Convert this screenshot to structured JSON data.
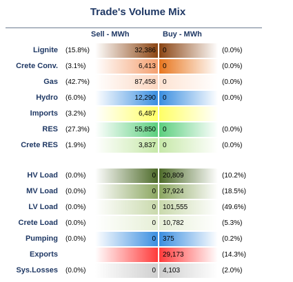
{
  "chart_data": {
    "type": "table",
    "title": "Trade's Volume Mix",
    "columns": [
      "Sell - MWh",
      "Buy - MWh"
    ],
    "rows": [
      {
        "label": "Lignite",
        "sell_pct": "(15.8%)",
        "sell": "32,386",
        "buy": "0",
        "buy_pct": "(0.0%)",
        "sell_color": "#8b4513",
        "buy_color": "#8b4513"
      },
      {
        "label": "Crete Conv.",
        "sell_pct": "(3.1%)",
        "sell": "6,413",
        "buy": "0",
        "buy_pct": "(0.0%)",
        "sell_color": "#f4a070",
        "buy_color": "#e8761e"
      },
      {
        "label": "Gas",
        "sell_pct": "(42.7%)",
        "sell": "87,458",
        "buy": "0",
        "buy_pct": "(0.0%)",
        "sell_color": "#fbd6c0",
        "buy_color": "#fde3d2"
      },
      {
        "label": "Hydro",
        "sell_pct": "(6.0%)",
        "sell": "12,290",
        "buy": "0",
        "buy_pct": "(0.0%)",
        "sell_color": "#3a8ee0",
        "buy_color": "#3a8ee0"
      },
      {
        "label": "Imports",
        "sell_pct": "(3.2%)",
        "sell": "6,487",
        "buy": "",
        "buy_pct": "",
        "sell_color": "#ffff66",
        "buy_color": "#ffff66"
      },
      {
        "label": "RES",
        "sell_pct": "(27.3%)",
        "sell": "55,850",
        "buy": "0",
        "buy_pct": "(0.0%)",
        "sell_color": "#5ccf7e",
        "buy_color": "#5ccf7e"
      },
      {
        "label": "Crete RES",
        "sell_pct": "(1.9%)",
        "sell": "3,837",
        "buy": "0",
        "buy_pct": "(0.0%)",
        "sell_color": "#c6e8a8",
        "buy_color": "#c6e8a8"
      },
      {
        "label": "HV Load",
        "sell_pct": "(0.0%)",
        "sell": "0",
        "buy": "20,809",
        "buy_pct": "(10.2%)",
        "sell_color": "#4e6b2a",
        "buy_color": "#4e6b2a"
      },
      {
        "label": "MV Load",
        "sell_pct": "(0.0%)",
        "sell": "0",
        "buy": "37,924",
        "buy_pct": "(18.5%)",
        "sell_color": "#8ba660",
        "buy_color": "#8ba660"
      },
      {
        "label": "LV Load",
        "sell_pct": "(0.0%)",
        "sell": "0",
        "buy": "101,555",
        "buy_pct": "(49.6%)",
        "sell_color": "#c9d9ac",
        "buy_color": "#c9d9ac"
      },
      {
        "label": "Crete Load",
        "sell_pct": "(0.0%)",
        "sell": "0",
        "buy": "10,782",
        "buy_pct": "(5.3%)",
        "sell_color": "#e6efd6",
        "buy_color": "#e6efd6"
      },
      {
        "label": "Pumping",
        "sell_pct": "(0.0%)",
        "sell": "0",
        "buy": "375",
        "buy_pct": "(0.2%)",
        "sell_color": "#3a8ee0",
        "buy_color": "#3a8ee0"
      },
      {
        "label": "Exports",
        "sell_pct": "",
        "sell": "",
        "buy": "29,173",
        "buy_pct": "(14.3%)",
        "sell_color": "#ff3b3b",
        "buy_color": "#ff3b3b"
      },
      {
        "label": "Sys.Losses",
        "sell_pct": "(0.0%)",
        "sell": "0",
        "buy": "4,103",
        "buy_pct": "(2.0%)",
        "sell_color": "#cfcfcf",
        "buy_color": "#cfcfcf"
      }
    ]
  }
}
